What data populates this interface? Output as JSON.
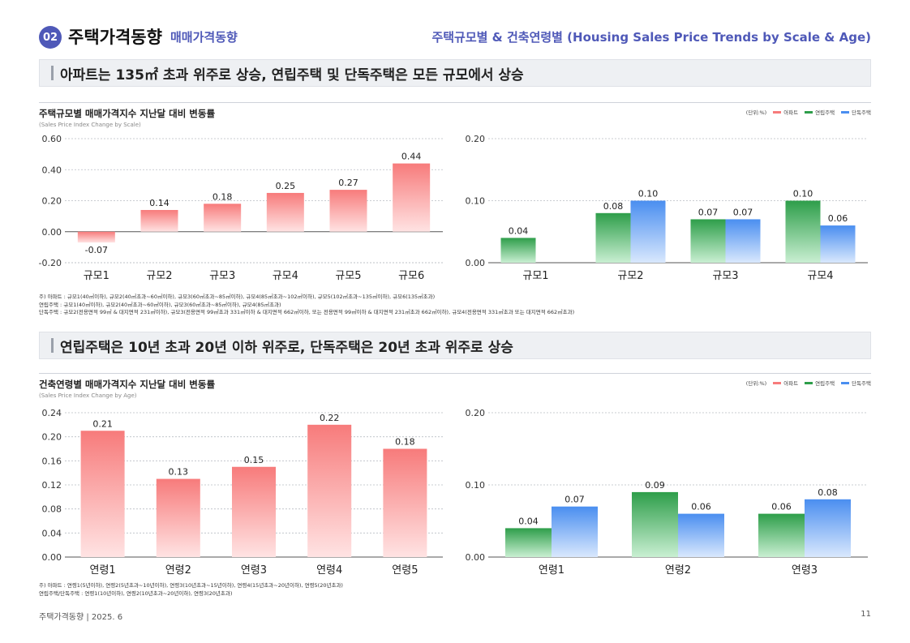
{
  "header": {
    "badge": "02",
    "title": "주택가격동향",
    "subtitle": "매매가격동향",
    "right_title": "주택규모별 & 건축연령별 (Housing Sales Price Trends by Scale & Age)"
  },
  "section1": {
    "banner": "아파트는  135㎡ 초과 위주로 상승, 연립주택 및 단독주택은 모든 규모에서 상승",
    "chart_title": "주택규모별 매매가격지수 지난달 대비 변동률",
    "chart_subtitle": "(Sales Price Index Change by Scale)",
    "unit": "(단위:%)",
    "legend": [
      "아파트",
      "연립주택",
      "단독주택"
    ],
    "notes": [
      "주) 아파트 : 규모1(40㎡이하), 규모2(40㎡초과~60㎡이하), 규모3(60㎡초과~85㎡이하), 규모4(85㎡초과~102㎡이하), 규모5(102㎡초과~135㎡이하), 규모6(135㎡초과)",
      "     연립주택 : 규모1(40㎡이하), 규모2(40㎡초과~60㎡이하), 규모3(60㎡초과~85㎡이하), 규모4(85㎡초과)",
      "     단독주택 : 규모2(전용면적 99㎡ & 대지면적 231㎡이하), 규모3(전용면적 99㎡초과 331㎡이하 & 대지면적 662㎡이하, 또는 전용면적 99㎡이하 & 대지면적 231㎡초과 662㎡이하), 규모4(전용면적 331㎡초과 또는 대지면적 662㎡초과)"
    ]
  },
  "section2": {
    "banner": "연립주택은 10년 초과 20년 이하 위주로, 단독주택은 20년 초과 위주로 상승",
    "chart_title": "건축연령별 매매가격지수 지난달 대비 변동률",
    "chart_subtitle": "(Sales Price Index Change by Age)",
    "unit": "(단위:%)",
    "legend": [
      "아파트",
      "연립주택",
      "단독주택"
    ],
    "notes": [
      "주) 아파트 : 연령1(5년이하), 연령2(5년초과~10년이하), 연령3(10년초과~15년이하), 연령4(15년초과~20년이하), 연령5(20년초과)",
      "     연립주택/단독주택 : 연령1(10년이하), 연령2(10년초과~20년이하), 연령3(20년초과)"
    ]
  },
  "footer": {
    "left": "주택가격동향    |    2025. 6",
    "page": "11"
  },
  "colors": {
    "apartment": "#f77b7b",
    "rowhouse": "#2e9e4a",
    "detached": "#4a8ef0",
    "accent": "#4f59b8"
  },
  "chart_data": [
    {
      "type": "bar",
      "categories": [
        "규모1",
        "규모2",
        "규모3",
        "규모4",
        "규모5",
        "규모6"
      ],
      "series": [
        {
          "name": "아파트",
          "values": [
            -0.07,
            0.14,
            0.18,
            0.25,
            0.27,
            0.44
          ]
        }
      ],
      "ylim": [
        -0.2,
        0.6
      ],
      "yticks": [
        "-0.20",
        "0.00",
        "0.20",
        "0.40",
        "0.60"
      ],
      "labels": [
        "-0.07",
        "0.14",
        "0.18",
        "0.25",
        "0.27",
        "0.44"
      ]
    },
    {
      "type": "bar",
      "categories": [
        "규모1",
        "규모2",
        "규모3",
        "규모4"
      ],
      "series": [
        {
          "name": "연립주택",
          "values": [
            0.04,
            0.08,
            0.07,
            0.1
          ],
          "labels": [
            "0.04",
            "0.08",
            "0.07",
            "0.10"
          ]
        },
        {
          "name": "단독주택",
          "values": [
            null,
            0.1,
            0.07,
            0.06
          ],
          "labels": [
            "",
            "0.10",
            "0.07",
            "0.06"
          ]
        }
      ],
      "ylim": [
        0,
        0.2
      ],
      "yticks": [
        "0.00",
        "0.10",
        "0.20"
      ]
    },
    {
      "type": "bar",
      "categories": [
        "연령1",
        "연령2",
        "연령3",
        "연령4",
        "연령5"
      ],
      "series": [
        {
          "name": "아파트",
          "values": [
            0.21,
            0.13,
            0.15,
            0.22,
            0.18
          ]
        }
      ],
      "ylim": [
        0,
        0.24
      ],
      "yticks": [
        "0.00",
        "0.04",
        "0.08",
        "0.12",
        "0.16",
        "0.20",
        "0.24"
      ],
      "labels": [
        "0.21",
        "0.13",
        "0.15",
        "0.22",
        "0.18"
      ]
    },
    {
      "type": "bar",
      "categories": [
        "연령1",
        "연령2",
        "연령3"
      ],
      "series": [
        {
          "name": "연립주택",
          "values": [
            0.04,
            0.09,
            0.06
          ],
          "labels": [
            "0.04",
            "0.09",
            "0.06"
          ]
        },
        {
          "name": "단독주택",
          "values": [
            0.07,
            0.06,
            0.08
          ],
          "labels": [
            "0.07",
            "0.06",
            "0.08"
          ]
        }
      ],
      "ylim": [
        0,
        0.2
      ],
      "yticks": [
        "0.00",
        "0.10",
        "0.20"
      ]
    }
  ]
}
